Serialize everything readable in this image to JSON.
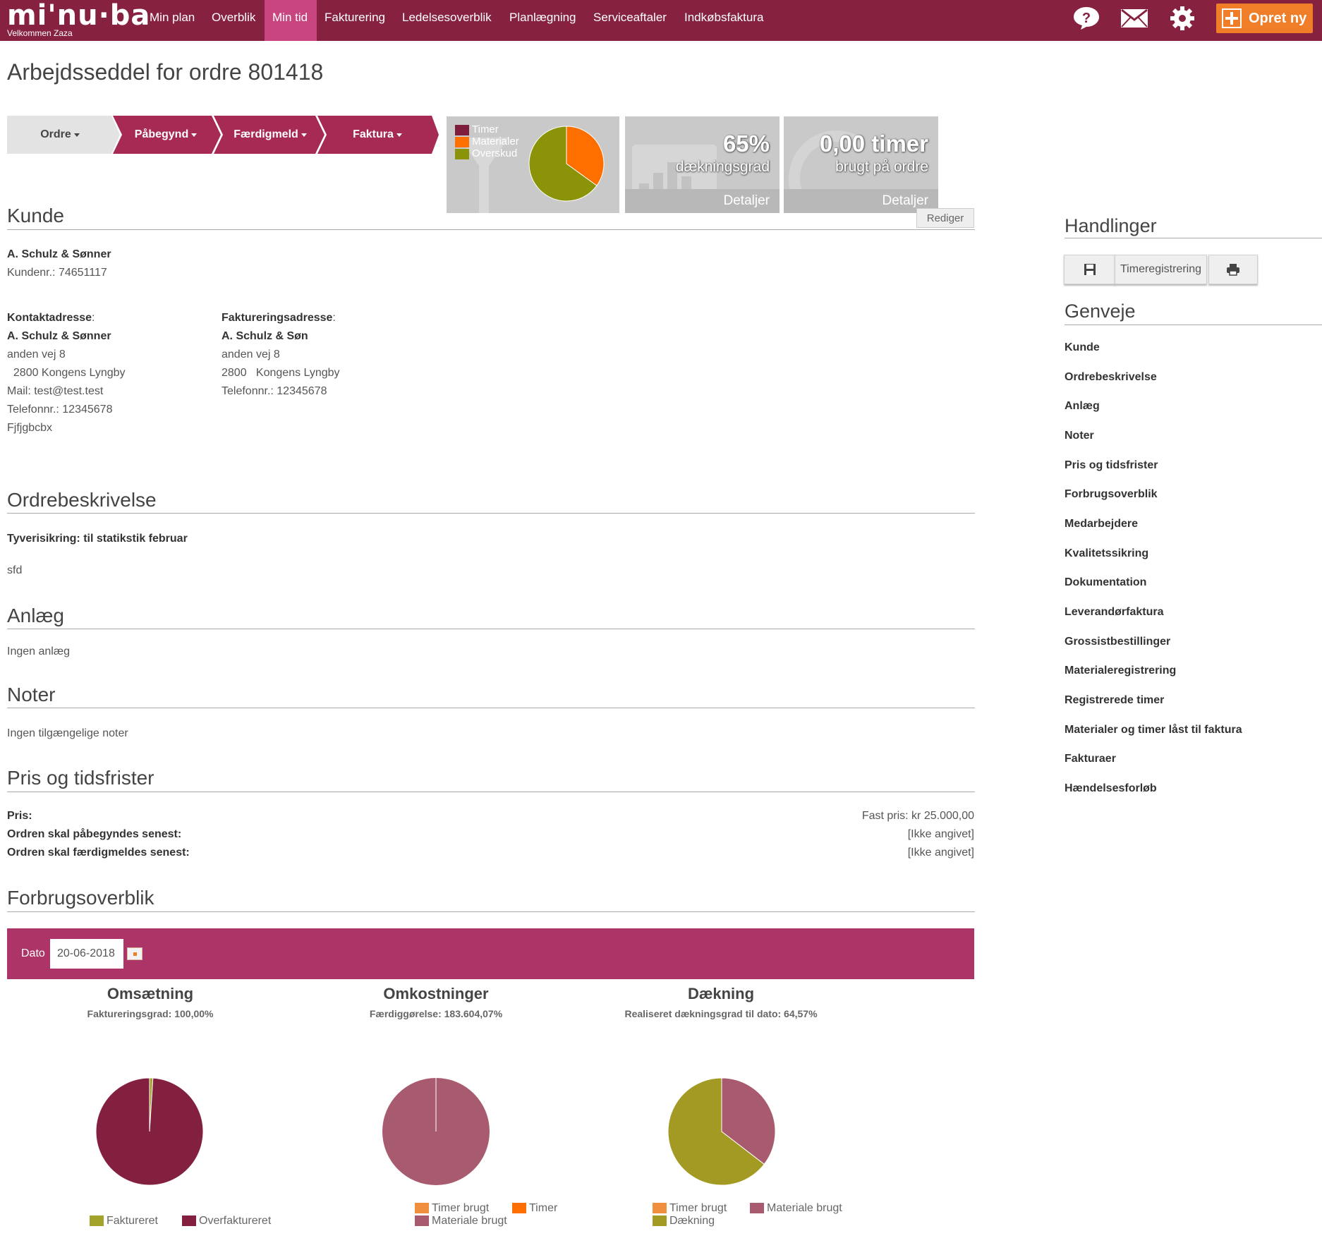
{
  "topbar": {
    "logo": "mi'nu·ba",
    "welcome": "Velkommen Zaza",
    "nav": [
      "Min plan",
      "Overblik",
      "Min tid",
      "Fakturering",
      "Ledelsesoverblik",
      "Planlægning",
      "Serviceaftaler",
      "Indkøbsfaktura"
    ],
    "active_nav": "Min tid",
    "opret_label": "Opret ny"
  },
  "colors": {
    "brand": "#862140",
    "accent_pink": "#c8457f",
    "orange": "#f07d27",
    "olive": "#8b9409",
    "mauve": "#a85a6e"
  },
  "page": {
    "title": "Arbejdsseddel for ordre 801418"
  },
  "steps": [
    "Ordre",
    "Påbegynd",
    "Færdigmeld",
    "Faktura"
  ],
  "widget_pie": {
    "legend": [
      "Timer",
      "Materialer",
      "Overskud"
    ],
    "slices": [
      {
        "label": "Timer",
        "value": 0
      },
      {
        "label": "Materialer",
        "value": 35
      },
      {
        "label": "Overskud",
        "value": 65
      }
    ]
  },
  "widget_coverage": {
    "value": "65%",
    "label": "dækningsgrad",
    "link": "Detaljer"
  },
  "widget_hours": {
    "value": "0,00 timer",
    "label": "brugt på ordre",
    "link": "Detaljer"
  },
  "rediger": "Rediger",
  "kunde": {
    "section": "Kunde",
    "name": "A. Schulz & Sønner",
    "kundenr": "Kundenr.: 74651117",
    "contact_label": "Kontaktadresse",
    "contact_lines": [
      "A. Schulz & Sønner",
      "anden vej 8",
      "  2800 Kongens Lyngby",
      "Mail: test@test.test",
      "Telefonnr.: 12345678",
      "Fjfjgbcbx"
    ],
    "billing_label": "Faktureringsadresse",
    "billing_lines": [
      "A. Schulz & Søn",
      "anden vej 8",
      "2800   Kongens Lyngby",
      "Telefonnr.: 12345678"
    ]
  },
  "ordrebeskrivelse": {
    "section": "Ordrebeskrivelse",
    "heading": "Tyverisikring: til statikstik februar",
    "body": "sfd"
  },
  "anlaeg": {
    "section": "Anlæg",
    "body": "Ingen anlæg"
  },
  "noter": {
    "section": "Noter",
    "body": "Ingen tilgængelige noter"
  },
  "pris": {
    "section": "Pris og tidsfrister",
    "rows": [
      {
        "label": "Pris:",
        "value": "Fast pris: kr 25.000,00"
      },
      {
        "label": "Ordren skal påbegyndes senest:",
        "value": "[Ikke angivet]"
      },
      {
        "label": "Ordren skal færdigmeldes senest:",
        "value": "[Ikke angivet]"
      }
    ]
  },
  "forbrug": {
    "section": "Forbrugsoverblik",
    "dato_label": "Dato",
    "dato_value": "20-06-2018"
  },
  "chart_data": [
    {
      "type": "pie",
      "title": "Omsætning",
      "subtitle": "Faktureringsgrad: 100,00%",
      "series": [
        {
          "name": "Faktureret",
          "value": 1,
          "color": "#a3a22a"
        },
        {
          "name": "Overfaktureret",
          "value": 99,
          "color": "#84203f"
        }
      ]
    },
    {
      "type": "pie",
      "title": "Omkostninger",
      "subtitle": "Færdiggørelse: 183.604,07%",
      "series": [
        {
          "name": "Timer brugt",
          "value": 0,
          "color": "#f0903e"
        },
        {
          "name": "Timer",
          "value": 0,
          "color": "#ff6f00"
        },
        {
          "name": "Materiale brugt",
          "value": 100,
          "color": "#a85a6e"
        }
      ]
    },
    {
      "type": "pie",
      "title": "Dækning",
      "subtitle": "Realiseret dækningsgrad til dato: 64,57%",
      "series": [
        {
          "name": "Timer brugt",
          "value": 0,
          "color": "#f0903e"
        },
        {
          "name": "Materiale brugt",
          "value": 35.43,
          "color": "#a85a6e"
        },
        {
          "name": "Dækning",
          "value": 64.57,
          "color": "#a39a23"
        }
      ]
    }
  ],
  "side": {
    "handlinger": "Handlinger",
    "timereg_label": "Timeregistrering",
    "genveje": "Genveje",
    "links": [
      "Kunde",
      "Ordrebeskrivelse",
      "Anlæg",
      "Noter",
      "Pris og tidsfrister",
      "Forbrugsoverblik",
      "Medarbejdere",
      "Kvalitetssikring",
      "Dokumentation",
      "Leverandørfaktura",
      "Grossistbestillinger",
      "Materialeregistrering",
      "Registrerede timer",
      "Materialer og timer låst til faktura",
      "Fakturaer",
      "Hændelsesforløb"
    ]
  }
}
